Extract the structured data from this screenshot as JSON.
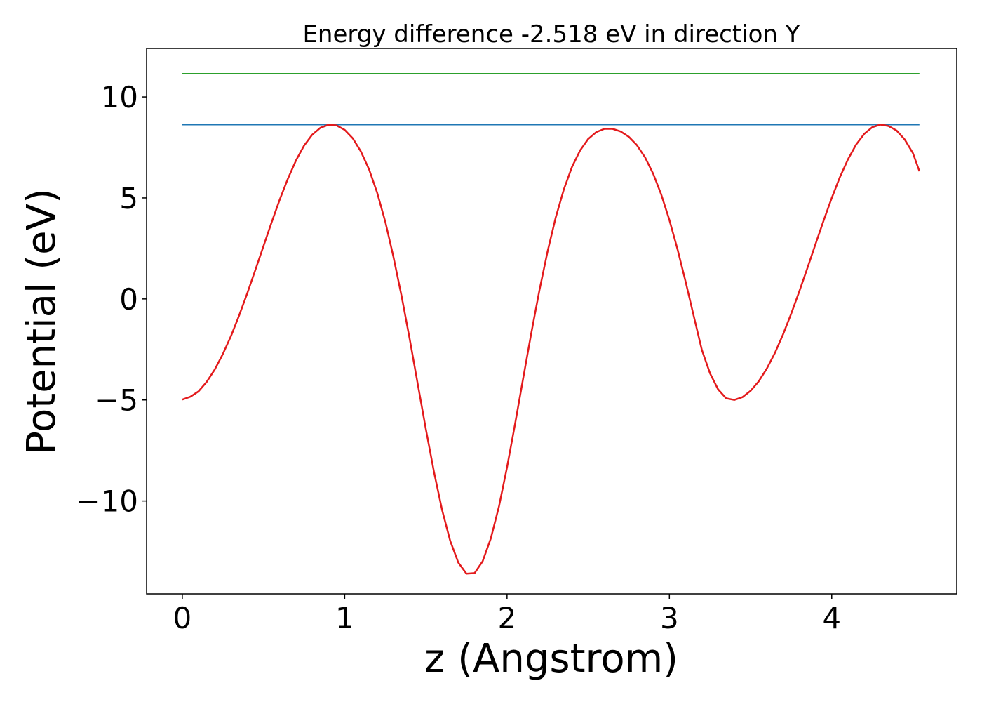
{
  "chart_data": {
    "type": "line",
    "title": "Energy difference -2.518 eV in direction Y",
    "xlabel": "z (Angstrom)",
    "ylabel": "Potential (eV)",
    "xlim": [
      -0.22,
      4.77
    ],
    "ylim": [
      -14.6,
      12.4
    ],
    "xticks": [
      0,
      1,
      2,
      3,
      4
    ],
    "xtick_labels": [
      "0",
      "1",
      "2",
      "3",
      "4"
    ],
    "yticks": [
      -10,
      -5,
      0,
      5,
      10
    ],
    "ytick_labels": [
      "−10",
      "−5",
      "0",
      "5",
      "10"
    ],
    "grid": false,
    "series": [
      {
        "color": "#2ca02c",
        "x": [
          0.0,
          4.54
        ],
        "y": [
          11.15,
          11.15
        ]
      },
      {
        "color": "#1f77b4",
        "x": [
          0.0,
          4.54
        ],
        "y": [
          8.63,
          8.63
        ]
      },
      {
        "color": "#e31a1c",
        "x": [
          0.0,
          0.05,
          0.1,
          0.15,
          0.2,
          0.25,
          0.3,
          0.35,
          0.4,
          0.45,
          0.5,
          0.55,
          0.6,
          0.65,
          0.7,
          0.75,
          0.8,
          0.85,
          0.9,
          0.95,
          1.0,
          1.05,
          1.1,
          1.15,
          1.2,
          1.25,
          1.3,
          1.35,
          1.4,
          1.45,
          1.5,
          1.55,
          1.6,
          1.65,
          1.7,
          1.75,
          1.8,
          1.85,
          1.9,
          1.95,
          2.0,
          2.05,
          2.1,
          2.15,
          2.2,
          2.25,
          2.3,
          2.35,
          2.4,
          2.45,
          2.5,
          2.55,
          2.6,
          2.65,
          2.7,
          2.75,
          2.8,
          2.85,
          2.9,
          2.95,
          3.0,
          3.05,
          3.1,
          3.15,
          3.2,
          3.25,
          3.3,
          3.35,
          3.4,
          3.45,
          3.5,
          3.55,
          3.6,
          3.65,
          3.7,
          3.75,
          3.8,
          3.85,
          3.9,
          3.95,
          4.0,
          4.05,
          4.1,
          4.15,
          4.2,
          4.25,
          4.3,
          4.35,
          4.4,
          4.45,
          4.5,
          4.54
        ],
        "y": [
          -4.98,
          -4.84,
          -4.57,
          -4.11,
          -3.49,
          -2.72,
          -1.83,
          -0.82,
          0.28,
          1.44,
          2.62,
          3.79,
          4.92,
          5.95,
          6.85,
          7.59,
          8.13,
          8.47,
          8.62,
          8.59,
          8.37,
          7.95,
          7.3,
          6.42,
          5.26,
          3.82,
          2.1,
          0.16,
          -1.97,
          -4.2,
          -6.44,
          -8.56,
          -10.45,
          -11.97,
          -13.05,
          -13.6,
          -13.57,
          -12.98,
          -11.86,
          -10.28,
          -8.34,
          -6.17,
          -3.9,
          -1.66,
          0.44,
          2.36,
          4.04,
          5.43,
          6.53,
          7.35,
          7.92,
          8.26,
          8.42,
          8.42,
          8.29,
          8.03,
          7.61,
          7.01,
          6.2,
          5.17,
          3.91,
          2.46,
          0.85,
          -0.84,
          -2.52,
          -3.68,
          -4.47,
          -4.92,
          -5.0,
          -4.86,
          -4.55,
          -4.08,
          -3.45,
          -2.67,
          -1.76,
          -0.74,
          0.37,
          1.53,
          2.71,
          3.88,
          5.0,
          6.02,
          6.91,
          7.64,
          8.17,
          8.5,
          8.63,
          8.56,
          8.33,
          7.89,
          7.22,
          6.32
        ]
      }
    ]
  }
}
